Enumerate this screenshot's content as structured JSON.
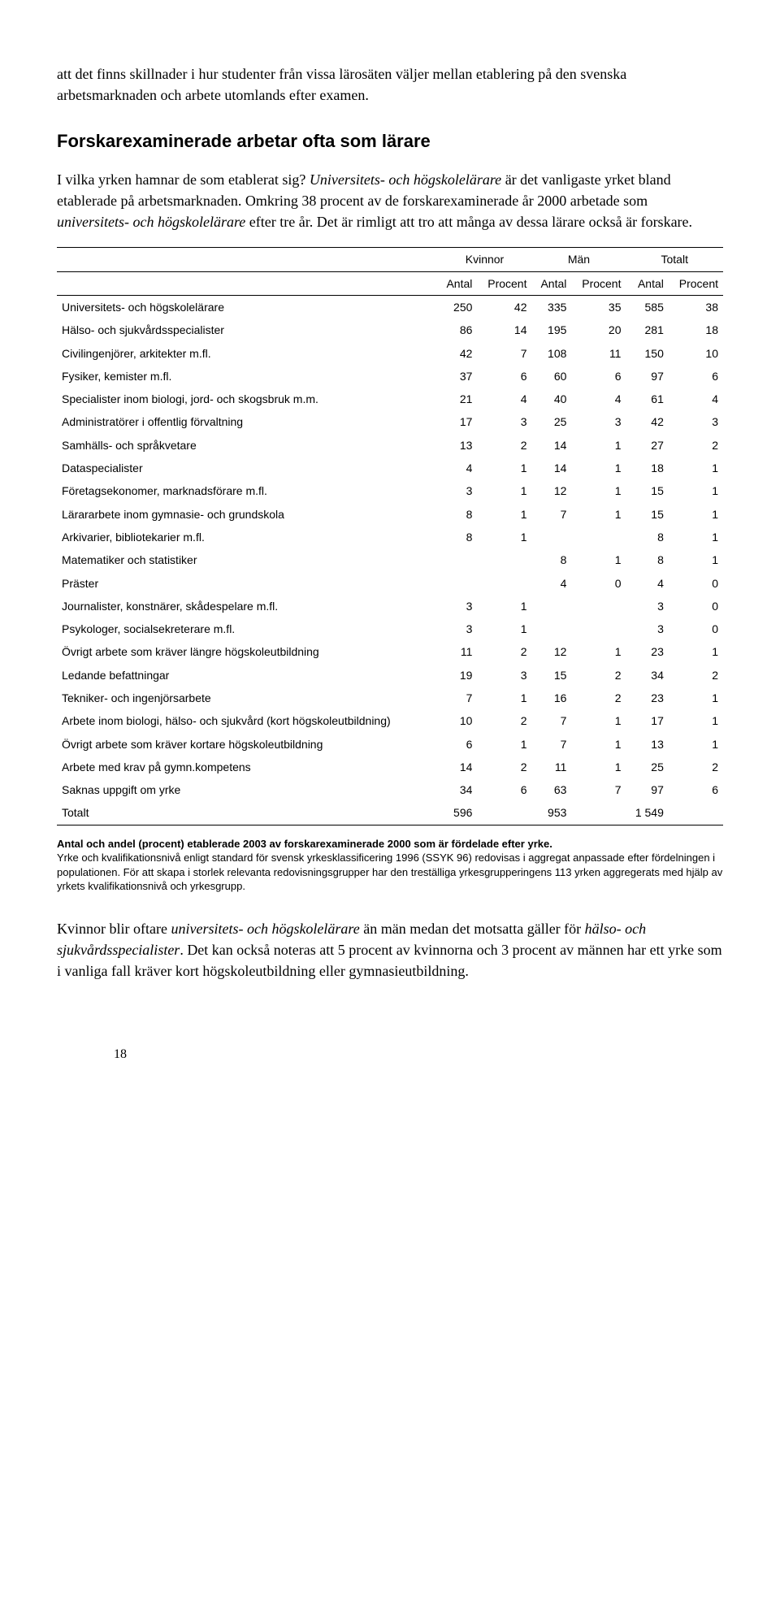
{
  "intro_paragraph": "att det finns skillnader i hur studenter från vissa lärosäten väljer mellan etablering på den svenska arbetsmarknaden och arbete utomlands efter examen.",
  "section_heading": "Forskarexaminerade arbetar ofta som lärare",
  "body_p1_a": "I vilka yrken hamnar de som etablerat sig? ",
  "body_p1_i1": "Universitets- och högskolelärare",
  "body_p1_b": " är det vanligaste yrket bland etablerade på arbetsmarknaden. Omkring 38 procent av de forskarexaminerade år 2000 arbetade som ",
  "body_p1_i2": "universitets- och högskolelärare",
  "body_p1_c": " efter tre år. Det är rimligt att tro att många av dessa lärare också är forskare.",
  "table": {
    "group_headers": [
      "Kvinnor",
      "Män",
      "Totalt"
    ],
    "sub_headers": [
      "Antal",
      "Procent",
      "Antal",
      "Procent",
      "Antal",
      "Procent"
    ],
    "rows": [
      {
        "label": "Universitets- och högskolelärare",
        "cells": [
          "250",
          "42",
          "335",
          "35",
          "585",
          "38"
        ]
      },
      {
        "label": "Hälso- och sjukvårdsspecialister",
        "cells": [
          "86",
          "14",
          "195",
          "20",
          "281",
          "18"
        ]
      },
      {
        "label": "Civilingenjörer, arkitekter m.fl.",
        "cells": [
          "42",
          "7",
          "108",
          "11",
          "150",
          "10"
        ]
      },
      {
        "label": "Fysiker, kemister m.fl.",
        "cells": [
          "37",
          "6",
          "60",
          "6",
          "97",
          "6"
        ]
      },
      {
        "label": "Specialister inom biologi, jord- och skogsbruk m.m.",
        "cells": [
          "21",
          "4",
          "40",
          "4",
          "61",
          "4"
        ]
      },
      {
        "label": "Administratörer i offentlig förvaltning",
        "cells": [
          "17",
          "3",
          "25",
          "3",
          "42",
          "3"
        ]
      },
      {
        "label": "Samhälls- och språkvetare",
        "cells": [
          "13",
          "2",
          "14",
          "1",
          "27",
          "2"
        ]
      },
      {
        "label": "Dataspecialister",
        "cells": [
          "4",
          "1",
          "14",
          "1",
          "18",
          "1"
        ]
      },
      {
        "label": "Företagsekonomer, marknadsförare m.fl.",
        "cells": [
          "3",
          "1",
          "12",
          "1",
          "15",
          "1"
        ]
      },
      {
        "label": "Lärararbete inom gymnasie- och grundskola",
        "cells": [
          "8",
          "1",
          "7",
          "1",
          "15",
          "1"
        ]
      },
      {
        "label": "Arkivarier, bibliotekarier m.fl.",
        "cells": [
          "8",
          "1",
          "",
          "",
          "8",
          "1"
        ]
      },
      {
        "label": "Matematiker och statistiker",
        "cells": [
          "",
          "",
          "8",
          "1",
          "8",
          "1"
        ]
      },
      {
        "label": "Präster",
        "cells": [
          "",
          "",
          "4",
          "0",
          "4",
          "0"
        ]
      },
      {
        "label": "Journalister, konstnärer, skådespelare m.fl.",
        "cells": [
          "3",
          "1",
          "",
          "",
          "3",
          "0"
        ]
      },
      {
        "label": "Psykologer, socialsekreterare m.fl.",
        "cells": [
          "3",
          "1",
          "",
          "",
          "3",
          "0"
        ]
      },
      {
        "label": "Övrigt arbete som kräver längre högskoleutbildning",
        "cells": [
          "11",
          "2",
          "12",
          "1",
          "23",
          "1"
        ]
      },
      {
        "label": "Ledande befattningar",
        "cells": [
          "19",
          "3",
          "15",
          "2",
          "34",
          "2"
        ]
      },
      {
        "label": "Tekniker- och ingenjörsarbete",
        "cells": [
          "7",
          "1",
          "16",
          "2",
          "23",
          "1"
        ]
      },
      {
        "label": "Arbete inom biologi, hälso- och sjukvård (kort högskoleutbildning)",
        "cells": [
          "10",
          "2",
          "7",
          "1",
          "17",
          "1"
        ]
      },
      {
        "label": "Övrigt arbete som kräver kortare högskoleutbildning",
        "cells": [
          "6",
          "1",
          "7",
          "1",
          "13",
          "1"
        ]
      },
      {
        "label": "Arbete med krav på gymn.kompetens",
        "cells": [
          "14",
          "2",
          "11",
          "1",
          "25",
          "2"
        ]
      },
      {
        "label": "Saknas uppgift om yrke",
        "cells": [
          "34",
          "6",
          "63",
          "7",
          "97",
          "6"
        ]
      }
    ],
    "total_row": {
      "label": "Totalt",
      "cells": [
        "596",
        "",
        "953",
        "",
        "1 549",
        ""
      ]
    }
  },
  "caption_title": "Antal och andel (procent) etablerade 2003 av forskarexaminerade 2000 som är fördelade efter yrke.",
  "caption_body": "Yrke och kvalifikationsnivå enligt standard för svensk yrkesklassificering 1996 (SSYK 96) redovisas i aggregat anpassade efter fördelningen i populationen. För att skapa i storlek relevanta redovisningsgrupper har den treställiga yrkesgrupperingens 113 yrken aggregerats med hjälp av yrkets kvalifikationsnivå och yrkesgrupp.",
  "closing_a": "Kvinnor blir oftare ",
  "closing_i1": "universitets- och högskolelärare",
  "closing_b": " än män medan det motsatta gäller för ",
  "closing_i2": "hälso- och sjukvårdsspecialister",
  "closing_c": ". Det kan också noteras att 5 procent av kvinnorna och 3 procent av männen har ett yrke som i vanliga fall kräver kort högskoleutbildning eller gymnasieutbildning.",
  "page_number": "18"
}
